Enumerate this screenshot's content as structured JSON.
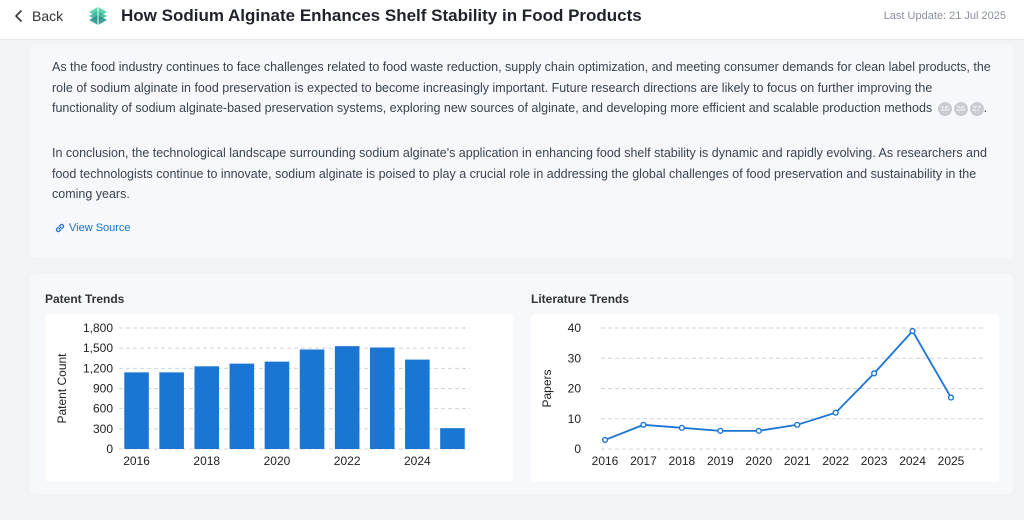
{
  "header": {
    "back_label": "Back",
    "title": "How Sodium Alginate Enhances Shelf Stability in Food Products",
    "last_update": "Last Update: 21 Jul 2025"
  },
  "content": {
    "paragraph1": "As the food industry continues to face challenges related to food waste reduction, supply chain optimization, and meeting consumer demands for clean label products, the role of sodium alginate in food preservation is expected to become increasingly important. Future research directions are likely to focus on further improving the functionality of sodium alginate-based preservation systems, exploring new sources of alginate, and developing more efficient and scalable production methods",
    "citations": [
      "16",
      "26",
      "27"
    ],
    "paragraph1_end": ".",
    "paragraph2": "In conclusion, the technological landscape surrounding sodium alginate's application in enhancing food shelf stability is dynamic and rapidly evolving. As researchers and food technologists continue to innovate, sodium alginate is poised to play a crucial role in addressing the global challenges of food preservation and sustainability in the coming years.",
    "view_source_label": "View Source"
  },
  "icons": {
    "back": "chevron-left-icon",
    "logo": "stacked-layers-logo",
    "link": "link-icon"
  },
  "colors": {
    "accent": "#1a76d2",
    "link": "#1a6fd6"
  },
  "chart_data": [
    {
      "type": "bar",
      "title": "Patent Trends",
      "ylabel": "Patent Count",
      "xlabel": "",
      "x": [
        2016,
        2017,
        2018,
        2019,
        2020,
        2021,
        2022,
        2023,
        2024,
        2025
      ],
      "values": [
        1140,
        1140,
        1230,
        1270,
        1300,
        1480,
        1530,
        1510,
        1330,
        310
      ],
      "x_tick_labels": [
        "2016",
        "2018",
        "2020",
        "2022",
        "2024"
      ],
      "y_ticks": [
        0,
        300,
        600,
        900,
        1200,
        1500,
        1800
      ],
      "y_tick_labels": [
        "0",
        "300",
        "600",
        "900",
        "1,200",
        "1,500",
        "1,800"
      ],
      "ylim": [
        0,
        1800
      ],
      "grid": true,
      "legend": "none"
    },
    {
      "type": "line",
      "title": "Literature Trends",
      "ylabel": "Papers",
      "xlabel": "",
      "x": [
        2016,
        2017,
        2018,
        2019,
        2020,
        2021,
        2022,
        2023,
        2024,
        2025
      ],
      "values": [
        3,
        8,
        7,
        6,
        6,
        8,
        12,
        25,
        39,
        17
      ],
      "x_tick_labels": [
        "2016",
        "2017",
        "2018",
        "2019",
        "2020",
        "2021",
        "2022",
        "2023",
        "2024",
        "2025"
      ],
      "y_ticks": [
        0,
        10,
        20,
        30,
        40
      ],
      "y_tick_labels": [
        "0",
        "10",
        "20",
        "30",
        "40"
      ],
      "ylim": [
        0,
        40
      ],
      "grid": true,
      "legend": "none"
    }
  ]
}
